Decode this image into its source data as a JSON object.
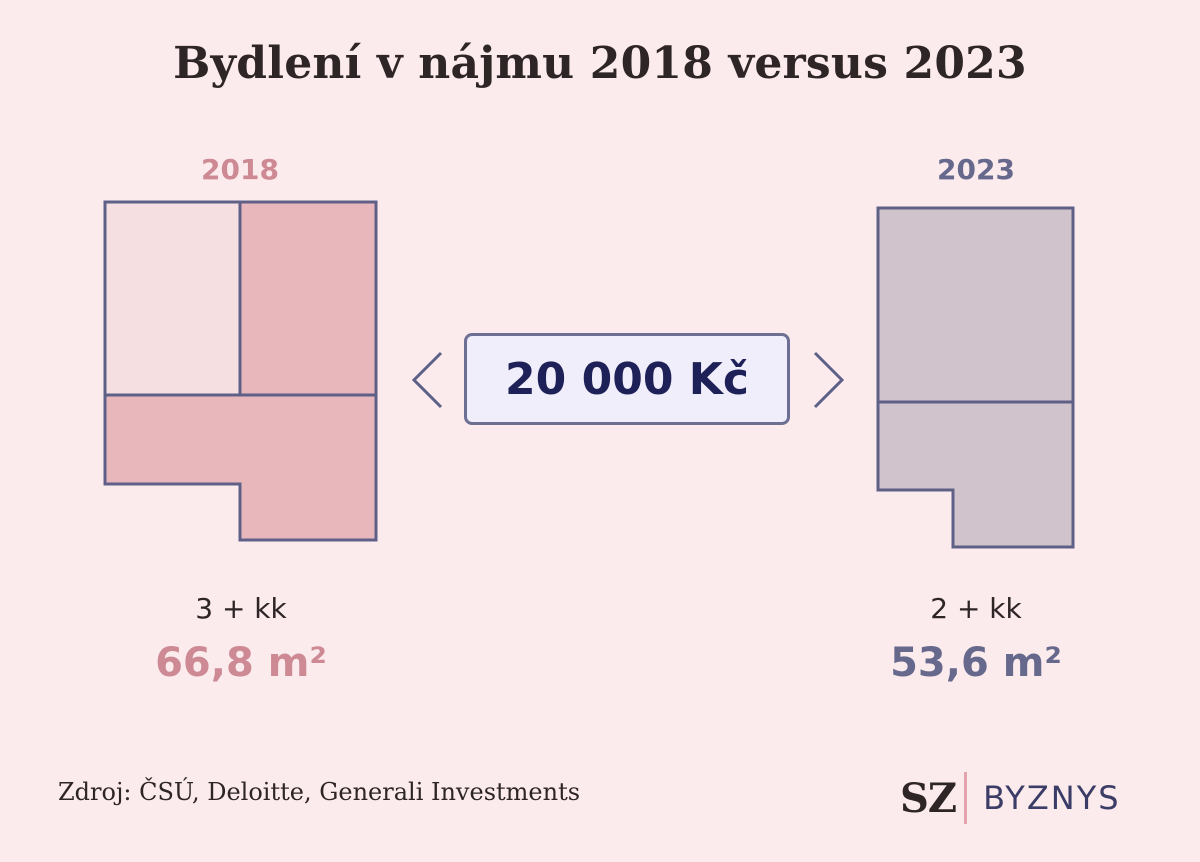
{
  "title": "Bydlení v nájmu 2018 versus 2023",
  "left": {
    "year": "2018",
    "rooms": "3 + kk",
    "area": "66,8 m²",
    "colors": {
      "main": "#e8b7bc",
      "light": "#f5dfe0",
      "label": "#cd8a95"
    }
  },
  "right": {
    "year": "2023",
    "rooms": "2 + kk",
    "area": "53,6 m²",
    "colors": {
      "main": "#d0c3cb",
      "label": "#66698c"
    }
  },
  "price": "20 000 Kč",
  "source": "Zdroj: ČSÚ, Deloitte, Generali Investments",
  "logo": {
    "mark": "SZ",
    "name": "BYZNYS"
  },
  "icons": {
    "left_arrow": "chevron-left-icon",
    "right_arrow": "chevron-right-icon"
  },
  "colors": {
    "background": "#fcebed",
    "outline": "#5f6087",
    "price_text": "#1e2157"
  }
}
